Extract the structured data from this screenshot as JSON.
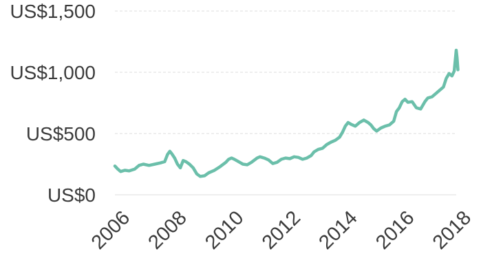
{
  "chart_data": {
    "type": "line",
    "title": "",
    "xlabel": "",
    "ylabel": "",
    "xlim": [
      2006,
      2018
    ],
    "ylim": [
      0,
      1500
    ],
    "grid": true,
    "legend": "none",
    "color": "#6bbfaa",
    "y_ticks": [
      {
        "value": 0,
        "label": "US$0"
      },
      {
        "value": 500,
        "label": "US$500"
      },
      {
        "value": 1000,
        "label": "US$1,000"
      },
      {
        "value": 1500,
        "label": "US$1,500"
      }
    ],
    "x_ticks": [
      {
        "value": 2006,
        "label": "2006"
      },
      {
        "value": 2008,
        "label": "2008"
      },
      {
        "value": 2010,
        "label": "2010"
      },
      {
        "value": 2012,
        "label": "2012"
      },
      {
        "value": 2014,
        "label": "2014"
      },
      {
        "value": 2016,
        "label": "2016"
      },
      {
        "value": 2018,
        "label": "2018"
      }
    ],
    "series": [
      {
        "points": [
          [
            2006.0,
            235
          ],
          [
            2006.1,
            210
          ],
          [
            2006.2,
            190
          ],
          [
            2006.35,
            200
          ],
          [
            2006.5,
            195
          ],
          [
            2006.7,
            210
          ],
          [
            2006.85,
            240
          ],
          [
            2007.0,
            250
          ],
          [
            2007.2,
            240
          ],
          [
            2007.4,
            250
          ],
          [
            2007.6,
            260
          ],
          [
            2007.75,
            270
          ],
          [
            2007.85,
            330
          ],
          [
            2007.93,
            355
          ],
          [
            2008.0,
            335
          ],
          [
            2008.1,
            300
          ],
          [
            2008.2,
            250
          ],
          [
            2008.3,
            220
          ],
          [
            2008.4,
            280
          ],
          [
            2008.5,
            270
          ],
          [
            2008.62,
            250
          ],
          [
            2008.75,
            220
          ],
          [
            2008.88,
            170
          ],
          [
            2009.0,
            150
          ],
          [
            2009.15,
            155
          ],
          [
            2009.3,
            180
          ],
          [
            2009.5,
            200
          ],
          [
            2009.7,
            230
          ],
          [
            2009.9,
            265
          ],
          [
            2010.0,
            290
          ],
          [
            2010.1,
            300
          ],
          [
            2010.2,
            290
          ],
          [
            2010.35,
            270
          ],
          [
            2010.5,
            250
          ],
          [
            2010.65,
            245
          ],
          [
            2010.8,
            265
          ],
          [
            2011.0,
            300
          ],
          [
            2011.1,
            310
          ],
          [
            2011.25,
            300
          ],
          [
            2011.4,
            285
          ],
          [
            2011.55,
            255
          ],
          [
            2011.7,
            265
          ],
          [
            2011.85,
            290
          ],
          [
            2012.0,
            300
          ],
          [
            2012.15,
            295
          ],
          [
            2012.3,
            310
          ],
          [
            2012.45,
            305
          ],
          [
            2012.6,
            290
          ],
          [
            2012.75,
            300
          ],
          [
            2012.9,
            320
          ],
          [
            2013.0,
            350
          ],
          [
            2013.15,
            370
          ],
          [
            2013.3,
            380
          ],
          [
            2013.45,
            410
          ],
          [
            2013.6,
            430
          ],
          [
            2013.75,
            445
          ],
          [
            2013.9,
            470
          ],
          [
            2014.0,
            510
          ],
          [
            2014.1,
            560
          ],
          [
            2014.2,
            590
          ],
          [
            2014.3,
            575
          ],
          [
            2014.45,
            560
          ],
          [
            2014.6,
            590
          ],
          [
            2014.75,
            610
          ],
          [
            2014.9,
            590
          ],
          [
            2015.0,
            570
          ],
          [
            2015.1,
            540
          ],
          [
            2015.2,
            520
          ],
          [
            2015.35,
            545
          ],
          [
            2015.5,
            560
          ],
          [
            2015.65,
            570
          ],
          [
            2015.8,
            600
          ],
          [
            2015.9,
            680
          ],
          [
            2016.0,
            710
          ],
          [
            2016.1,
            760
          ],
          [
            2016.2,
            780
          ],
          [
            2016.3,
            755
          ],
          [
            2016.45,
            760
          ],
          [
            2016.6,
            710
          ],
          [
            2016.75,
            700
          ],
          [
            2016.9,
            760
          ],
          [
            2017.0,
            790
          ],
          [
            2017.15,
            800
          ],
          [
            2017.3,
            830
          ],
          [
            2017.45,
            860
          ],
          [
            2017.55,
            880
          ],
          [
            2017.65,
            950
          ],
          [
            2017.75,
            990
          ],
          [
            2017.85,
            970
          ],
          [
            2017.93,
            1010
          ],
          [
            2018.0,
            1180
          ],
          [
            2018.03,
            1120
          ],
          [
            2018.06,
            1020
          ]
        ]
      }
    ]
  }
}
